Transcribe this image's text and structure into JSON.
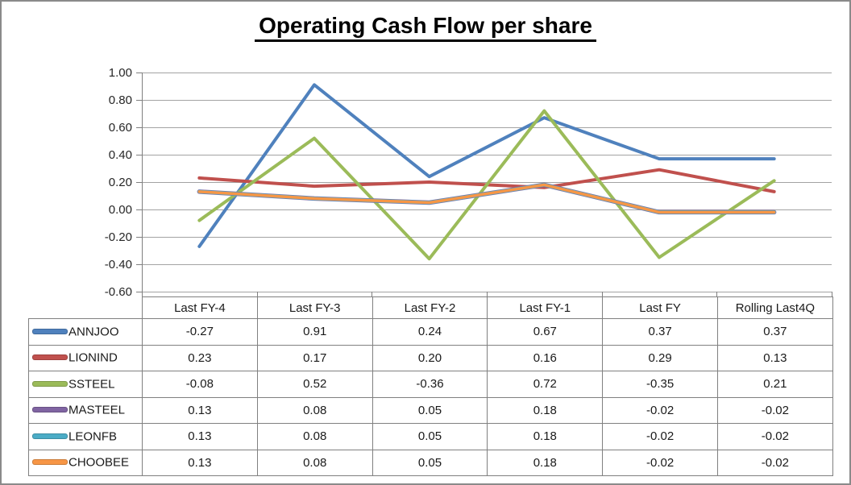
{
  "title": "Operating Cash Flow per share",
  "colors": {
    "grid": "#a3a3a3",
    "axis": "#7f7f7f",
    "table_border": "#808080",
    "text": "#262626",
    "title_text": "#000000",
    "outer_border": "#8a8a8a"
  },
  "chart_data": {
    "type": "line",
    "title": "Operating Cash Flow per share",
    "categories": [
      "Last FY-4",
      "Last FY-3",
      "Last FY-2",
      "Last FY-1",
      "Last FY",
      "Rolling Last4Q"
    ],
    "series": [
      {
        "name": "ANNJOO",
        "color": "#4F81BD",
        "values": [
          -0.27,
          0.91,
          0.24,
          0.67,
          0.37,
          0.37
        ]
      },
      {
        "name": "LIONIND",
        "color": "#C0504D",
        "values": [
          0.23,
          0.17,
          0.2,
          0.16,
          0.29,
          0.13
        ]
      },
      {
        "name": "SSTEEL",
        "color": "#9BBB59",
        "values": [
          -0.08,
          0.52,
          -0.36,
          0.72,
          -0.35,
          0.21
        ]
      },
      {
        "name": "MASTEEL",
        "color": "#8064A2",
        "values": [
          0.13,
          0.08,
          0.05,
          0.18,
          -0.02,
          -0.02
        ]
      },
      {
        "name": "LEONFB",
        "color": "#4BACC6",
        "values": [
          0.13,
          0.08,
          0.05,
          0.18,
          -0.02,
          -0.02
        ]
      },
      {
        "name": "CHOOBEE",
        "color": "#F79646",
        "values": [
          0.13,
          0.08,
          0.05,
          0.18,
          -0.02,
          -0.02
        ]
      }
    ],
    "ylim": [
      -0.6,
      1.0
    ],
    "ytick_step": 0.2,
    "yticklabels": [
      "1.00",
      "0.80",
      "0.60",
      "0.40",
      "0.20",
      "0.00",
      "-0.20",
      "-0.40",
      "-0.60"
    ],
    "grid": true,
    "legend_position": "data-table-left"
  },
  "table": {
    "header": [
      "Last FY-4",
      "Last FY-3",
      "Last FY-2",
      "Last FY-1",
      "Last FY",
      "Rolling Last4Q"
    ],
    "rows": [
      {
        "label": "ANNJOO",
        "values": [
          "-0.27",
          "0.91",
          "0.24",
          "0.67",
          "0.37",
          "0.37"
        ]
      },
      {
        "label": "LIONIND",
        "values": [
          "0.23",
          "0.17",
          "0.20",
          "0.16",
          "0.29",
          "0.13"
        ]
      },
      {
        "label": "SSTEEL",
        "values": [
          "-0.08",
          "0.52",
          "-0.36",
          "0.72",
          "-0.35",
          "0.21"
        ]
      },
      {
        "label": "MASTEEL",
        "values": [
          "0.13",
          "0.08",
          "0.05",
          "0.18",
          "-0.02",
          "-0.02"
        ]
      },
      {
        "label": "LEONFB",
        "values": [
          "0.13",
          "0.08",
          "0.05",
          "0.18",
          "-0.02",
          "-0.02"
        ]
      },
      {
        "label": "CHOOBEE",
        "values": [
          "0.13",
          "0.08",
          "0.05",
          "0.18",
          "-0.02",
          "-0.02"
        ]
      }
    ]
  }
}
